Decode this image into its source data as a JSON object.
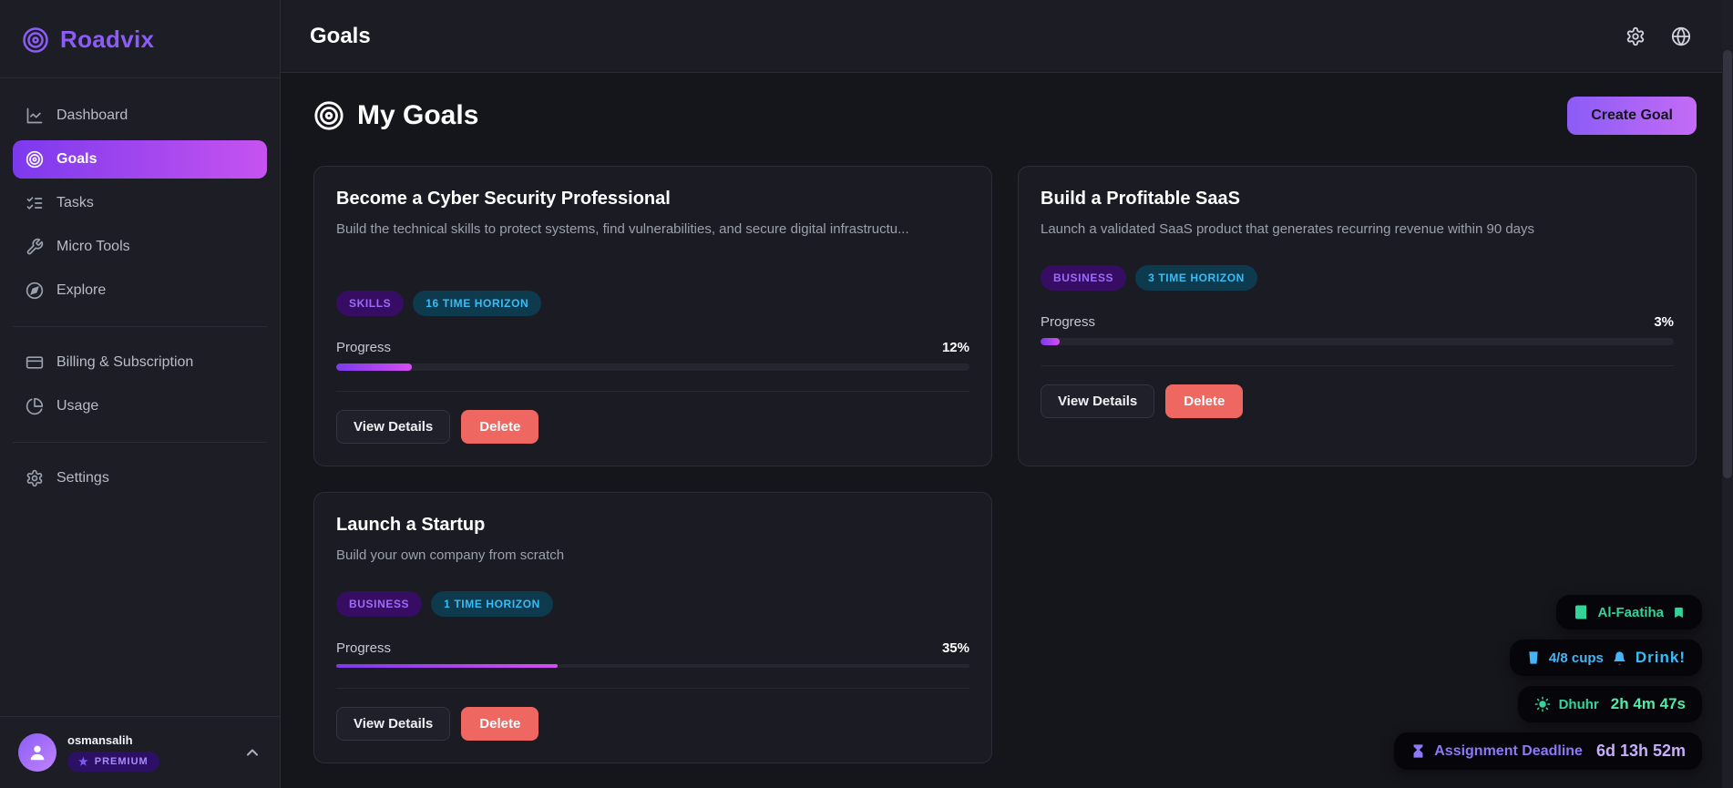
{
  "app": {
    "name": "Roadvix"
  },
  "palette": {
    "accent_purple": "#8b5cf6",
    "accent_pink": "#c653f0",
    "badge_purple_text": "#9a6cf9",
    "badge_teal_text": "#38bdf8",
    "delete_red": "#ee6760",
    "widget_green": "#34d399",
    "widget_blue": "#38bdf8",
    "widget_purple": "#8d78f7"
  },
  "sidebar": {
    "items": [
      {
        "label": "Dashboard"
      },
      {
        "label": "Goals"
      },
      {
        "label": "Tasks"
      },
      {
        "label": "Micro Tools"
      },
      {
        "label": "Explore"
      },
      {
        "label": "Billing & Subscription"
      },
      {
        "label": "Usage"
      },
      {
        "label": "Settings"
      }
    ],
    "user": {
      "name": "osmansalih",
      "badge": "PREMIUM",
      "star": "★"
    }
  },
  "header": {
    "title": "Goals"
  },
  "main": {
    "title": "My Goals",
    "create_button": "Create Goal",
    "progress_label": "Progress",
    "actions": {
      "view": "View Details",
      "delete": "Delete"
    },
    "cards": [
      {
        "title": "Become a Cyber Security Professional",
        "description": "Build the technical skills to protect systems, find vulnerabilities, and secure digital infrastructu...",
        "badges": [
          {
            "label": "SKILLS"
          },
          {
            "label": "16 TIME HORIZON"
          }
        ],
        "percent": "12%"
      },
      {
        "title": "Build a Profitable SaaS",
        "description": "Launch a validated SaaS product that generates recurring revenue within 90 days",
        "badges": [
          {
            "label": "BUSINESS"
          },
          {
            "label": "3 TIME HORIZON"
          }
        ],
        "percent": "3%"
      },
      {
        "title": "Launch a Startup",
        "description": "Build your own company from scratch",
        "badges": [
          {
            "label": "BUSINESS"
          },
          {
            "label": "1 TIME HORIZON"
          }
        ],
        "percent": "35%"
      }
    ]
  },
  "widgets": {
    "quran": {
      "text": "Al-Faatiha"
    },
    "water": {
      "cups": "4/8 cups",
      "action": "Drink!"
    },
    "prayer": {
      "label": "Dhuhr",
      "time": "2h 4m 47s"
    },
    "deadline": {
      "label": "Assignment Deadline",
      "time": "6d 13h 52m"
    }
  }
}
